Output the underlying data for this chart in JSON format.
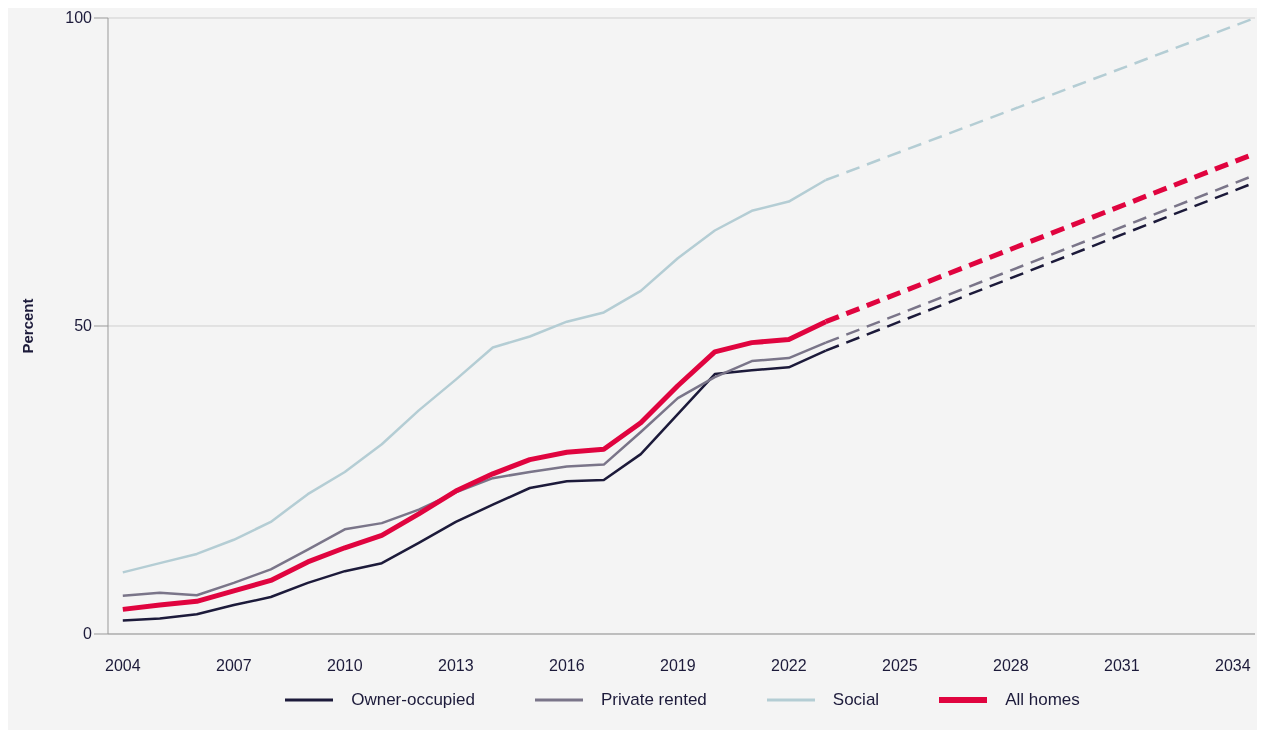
{
  "chart_data": {
    "type": "line",
    "ylabel": "Percent",
    "xlim": [
      2003.6,
      2034.6
    ],
    "xticks": [
      2004,
      2007,
      2010,
      2013,
      2016,
      2019,
      2022,
      2025,
      2028,
      2031,
      2034
    ],
    "ylim": [
      0,
      100
    ],
    "yticks": [
      0,
      50,
      100
    ],
    "grid": "y",
    "legend": "bottom",
    "marker": "none",
    "series": [
      {
        "name": "Owner-occupied",
        "color": "#1c1a3a",
        "line_style": "solid",
        "x": [
          2004,
          2005,
          2006,
          2007,
          2008,
          2009,
          2010,
          2011,
          2012,
          2013,
          2014,
          2015,
          2016,
          2017,
          2018,
          2019,
          2020,
          2021,
          2022,
          2023
        ],
        "values": [
          2.2,
          2.5,
          3.2,
          4.7,
          6,
          8.3,
          10.2,
          11.5,
          14.8,
          18.2,
          21,
          23.7,
          24.8,
          25,
          29.2,
          35.7,
          42.2,
          42.8,
          43.3,
          46
        ]
      },
      {
        "name": "Private rented",
        "color": "#7a7589",
        "line_style": "solid",
        "x": [
          2004,
          2005,
          2006,
          2007,
          2008,
          2009,
          2010,
          2011,
          2012,
          2013,
          2014,
          2015,
          2016,
          2017,
          2018,
          2019,
          2020,
          2021,
          2022,
          2023
        ],
        "values": [
          6.2,
          6.7,
          6.3,
          8.3,
          10.5,
          13.7,
          17,
          18,
          20.2,
          23,
          25.3,
          26.3,
          27.2,
          27.5,
          32.8,
          38.3,
          41.7,
          44.3,
          44.8,
          47.3
        ]
      },
      {
        "name": "Social",
        "color": "#b4cdd4",
        "line_style": "solid",
        "x": [
          2004,
          2005,
          2006,
          2007,
          2008,
          2009,
          2010,
          2011,
          2012,
          2013,
          2014,
          2015,
          2016,
          2017,
          2018,
          2019,
          2020,
          2021,
          2022,
          2023
        ],
        "values": [
          10,
          11.5,
          13,
          15.3,
          18.2,
          22.7,
          26.3,
          30.8,
          36.3,
          41.3,
          46.5,
          48.3,
          50.7,
          52.2,
          55.7,
          61,
          65.5,
          68.7,
          70.2,
          73.7
        ]
      },
      {
        "name": "All homes",
        "color": "#e0043f",
        "line_style": "solid",
        "x": [
          2004,
          2005,
          2006,
          2007,
          2008,
          2009,
          2010,
          2011,
          2012,
          2013,
          2014,
          2015,
          2016,
          2017,
          2018,
          2019,
          2020,
          2021,
          2022,
          2023
        ],
        "values": [
          4,
          4.7,
          5.3,
          7,
          8.7,
          11.7,
          14,
          16,
          19.5,
          23.2,
          26,
          28.3,
          29.5,
          30,
          34.3,
          40.3,
          45.8,
          47.3,
          47.8,
          50.7
        ]
      },
      {
        "color": "#1c1a3a",
        "line_style": "dashed",
        "x": [
          2023,
          2034.6
        ],
        "values": [
          46,
          73.3
        ]
      },
      {
        "color": "#7a7589",
        "line_style": "dashed",
        "x": [
          2023,
          2034.6
        ],
        "values": [
          47.3,
          74.5
        ]
      },
      {
        "color": "#b4cdd4",
        "line_style": "dashed",
        "x": [
          2023,
          2034.6
        ],
        "values": [
          73.7,
          100
        ]
      },
      {
        "color": "#e0043f",
        "line_style": "dashed",
        "x": [
          2023,
          2034.6
        ],
        "values": [
          50.7,
          78
        ]
      }
    ]
  }
}
